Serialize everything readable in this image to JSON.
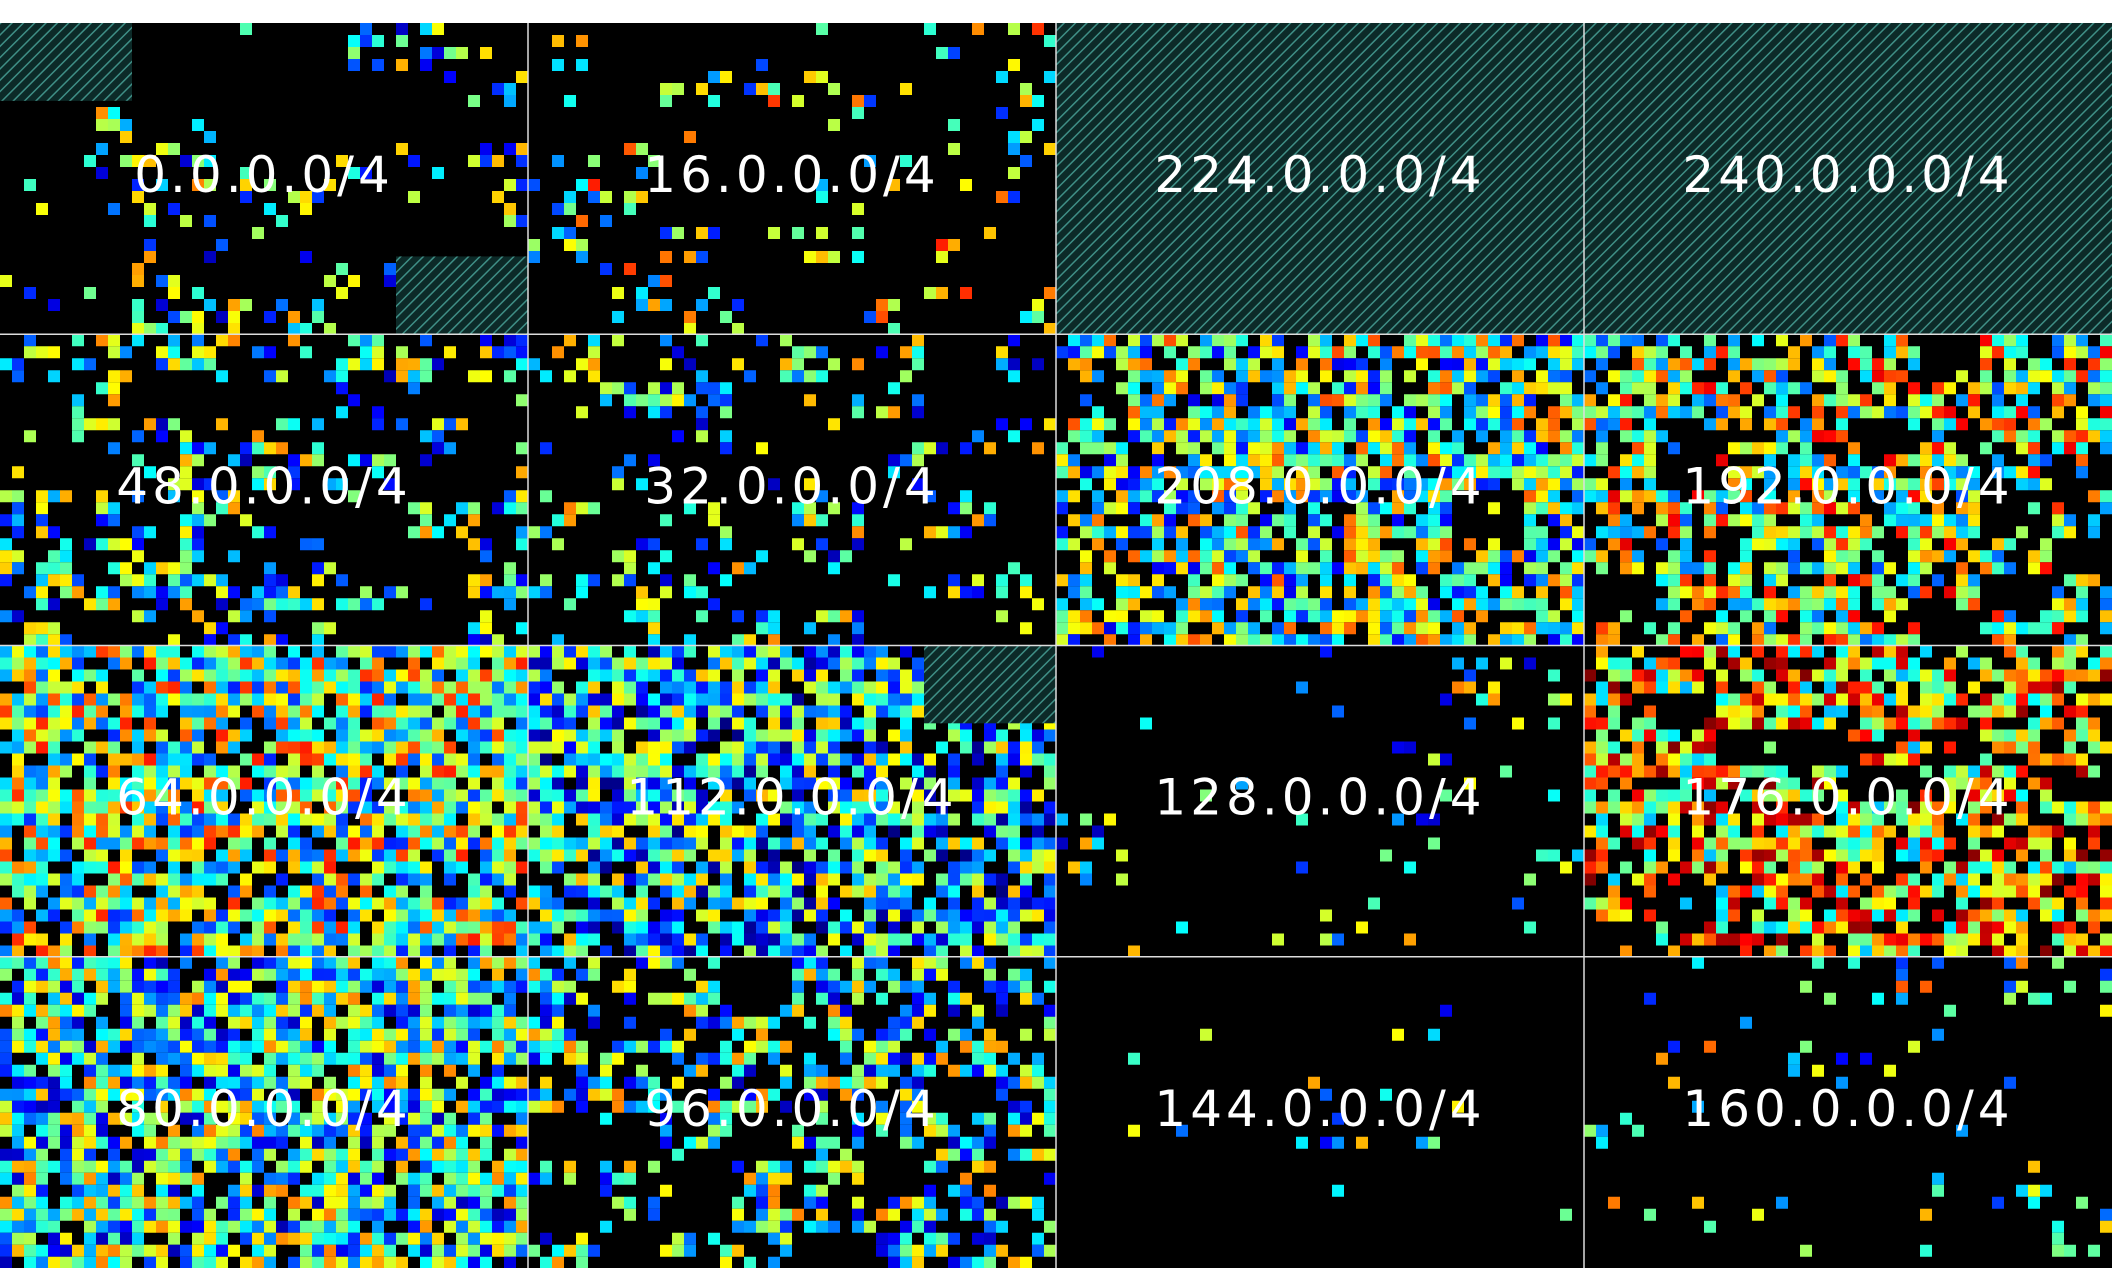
{
  "grid": {
    "rows": [
      [
        "0.0.0.0/4",
        "16.0.0.0/4",
        "224.0.0.0/4",
        "240.0.0.0/4"
      ],
      [
        "48.0.0.0/4",
        "32.0.0.0/4",
        "208.0.0.0/4",
        "192.0.0.0/4"
      ],
      [
        "64.0.0.0/4",
        "112.0.0.0/4",
        "128.0.0.0/4",
        "176.0.0.0/4"
      ],
      [
        "80.0.0.0/4",
        "96.0.0.0/4",
        "144.0.0.0/4",
        "160.0.0.0/4"
      ]
    ]
  }
}
